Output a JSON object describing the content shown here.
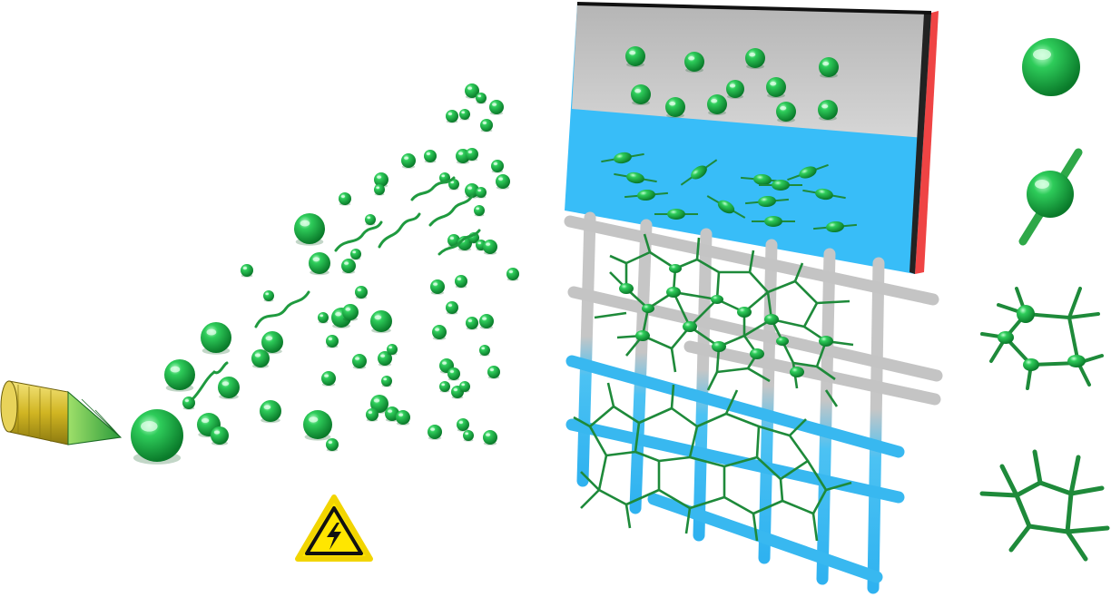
{
  "diagram": {
    "type": "electrospinning-schematic",
    "colors": {
      "particle": "#1fb84a",
      "particle_dark": "#0b7a2c",
      "fiber": "#1e8a3a",
      "nozzle": "#d9c23a",
      "nozzle_tip": "#3fbf4a",
      "collector_gray": "#c8c8c8",
      "collector_blue": "#38bdf8",
      "collector_edge": "#ef4444",
      "mesh_gray": "#c4c4c4",
      "mesh_blue": "#3ab8f0",
      "hazard_yellow": "#ffe600"
    },
    "components": [
      "spinneret-nozzle",
      "jet-particle-spray",
      "high-voltage-warning",
      "collector-plate",
      "grid-mesh"
    ],
    "legend_items": [
      "sphere-particle",
      "rod-particle",
      "small-network",
      "large-network"
    ]
  }
}
